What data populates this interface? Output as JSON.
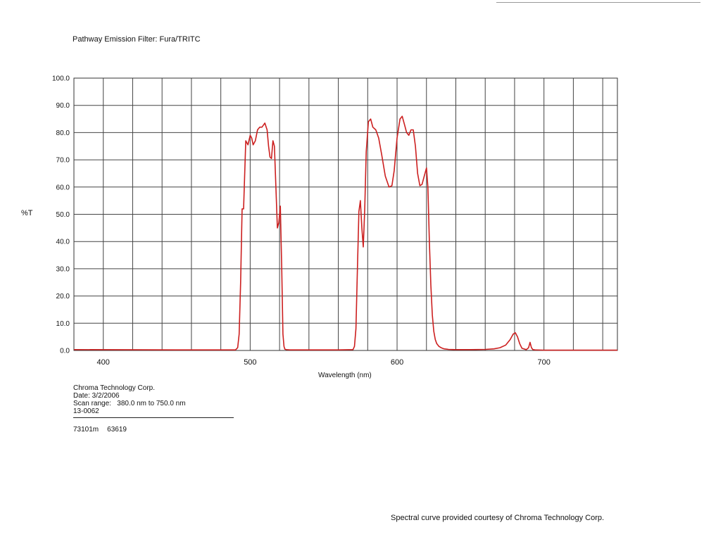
{
  "header": {
    "title": "Pathway Emission Filter: Fura/TRITC"
  },
  "footer": {
    "company": "Chroma Technology Corp.",
    "date": "Date: 3/2/2006",
    "scan_range_label": "Scan range:",
    "scan_range_value": "380.0 nm to 750.0 nm",
    "part": "13-0062",
    "code_1": "73101m",
    "code_2": "63619",
    "credit": "Spectral curve provided courtesy of Chroma Technology Corp."
  },
  "chart_data": {
    "type": "line",
    "title": "Pathway Emission Filter: Fura/TRITC",
    "xlabel": "Wavelength (nm)",
    "ylabel": "%T",
    "xlim": [
      380,
      750
    ],
    "ylim": [
      0,
      100
    ],
    "x_ticks": [
      400,
      500,
      600,
      700
    ],
    "x_tick_labels": [
      "400",
      "500",
      "600",
      "700"
    ],
    "y_ticks": [
      0,
      10,
      20,
      30,
      40,
      50,
      60,
      70,
      80,
      90,
      100
    ],
    "y_tick_labels": [
      "0.0",
      "10.0",
      "20.0",
      "30.0",
      "40.0",
      "50.0",
      "60.0",
      "70.0",
      "80.0",
      "90.0",
      "100.0"
    ],
    "x_grid_step": 20,
    "grid": true,
    "line_color": "#cc1f1f",
    "series": [
      {
        "x": [
          380,
          450,
          490,
          491.5,
          492.5,
          493.5,
          494.5,
          495.5,
          497,
          498.5,
          500,
          501,
          502,
          503.5,
          505,
          506.5,
          508,
          510,
          511.5,
          512.5,
          513.5,
          514.5,
          515.5,
          516.5,
          517.5,
          518.5,
          519.5,
          520.5,
          521.5,
          522.3,
          523,
          523.6,
          524.5,
          527,
          535,
          560,
          570,
          571,
          572,
          573,
          574,
          575,
          576,
          577,
          578,
          579,
          580.5,
          582,
          583.5,
          585.5,
          587.5,
          589.5,
          592,
          594.5,
          596.5,
          598,
          600,
          602,
          603.5,
          605,
          606.5,
          608,
          609.5,
          611,
          612.5,
          614,
          615.5,
          617,
          618.5,
          620,
          621,
          622,
          623,
          624,
          625,
          626,
          627,
          628.5,
          630,
          632,
          635,
          640,
          650,
          660,
          666,
          670,
          674,
          677,
          679,
          680.5,
          682,
          683.5,
          685,
          688,
          689.5,
          690.5,
          691.5,
          692.5,
          694,
          700,
          750
        ],
        "y": [
          0.3,
          0.2,
          0.2,
          1,
          6,
          25,
          52,
          52,
          77,
          75.5,
          79,
          78,
          75.5,
          77,
          81,
          82,
          82,
          83.5,
          81,
          75,
          71,
          70.5,
          77,
          75,
          60,
          45,
          47,
          53,
          30,
          6,
          1.5,
          0.5,
          0.3,
          0.2,
          0.2,
          0.2,
          0.3,
          1.5,
          8,
          30,
          51,
          55,
          45,
          38,
          52,
          73,
          84,
          85,
          82,
          81,
          78,
          72,
          64,
          60,
          60.5,
          66,
          78,
          85,
          86,
          83,
          80,
          79,
          81,
          81,
          75,
          65,
          60.5,
          61,
          64,
          67,
          60,
          40,
          24,
          13,
          7,
          4,
          2.5,
          1.5,
          1,
          0.6,
          0.4,
          0.3,
          0.3,
          0.4,
          0.6,
          1,
          2,
          4,
          6,
          6.5,
          5,
          2.5,
          0.8,
          0.3,
          1,
          3,
          1,
          0.3,
          0.2,
          0.1,
          0.1
        ]
      }
    ]
  }
}
